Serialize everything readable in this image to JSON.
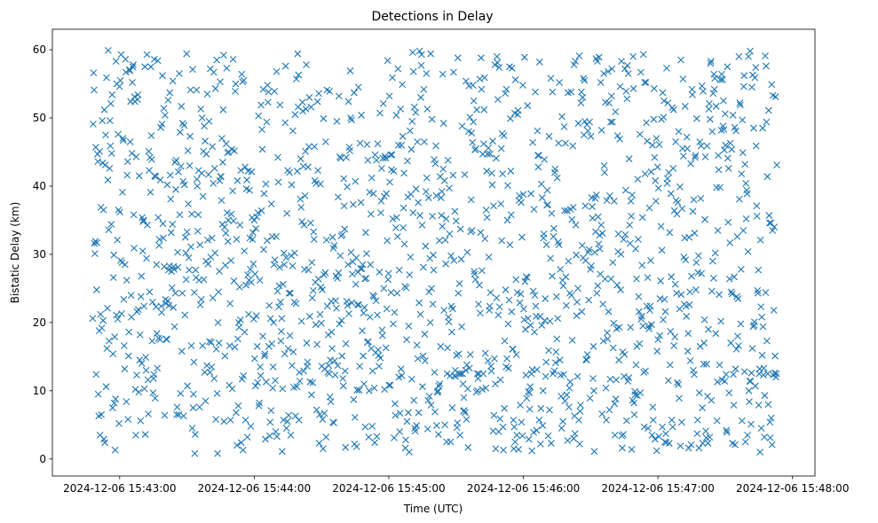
{
  "chart_data": {
    "type": "scatter",
    "title": "Detections in Delay",
    "xlabel": "Time (UTC)",
    "ylabel": "Bistatic Delay (km)",
    "marker": "x",
    "color": "#1f77b4",
    "grid": false,
    "x_start": "2024-12-06 15:42:48",
    "x_end": "2024-12-06 15:47:53",
    "xlim": [
      "2024-12-06 15:42:30",
      "2024-12-06 15:48:10"
    ],
    "ylim": [
      -2.5,
      63
    ],
    "x_ticks": [
      "2024-12-06 15:43:00",
      "2024-12-06 15:44:00",
      "2024-12-06 15:45:00",
      "2024-12-06 15:46:00",
      "2024-12-06 15:47:00",
      "2024-12-06 15:48:00"
    ],
    "y_ticks": [
      0,
      10,
      20,
      30,
      40,
      50,
      60
    ],
    "y_values": [
      20.6,
      49.1,
      56.6,
      54.1,
      31.6,
      30.1,
      31.9,
      45.7,
      12.4,
      24.8,
      31.7,
      44.7,
      43.6,
      9.5,
      6.3,
      18.8,
      45.1,
      3.5,
      21.2,
      36.9,
      6.5,
      19.2,
      49.6,
      43.4,
      20.3,
      36.5,
      2.9,
      51.2,
      2.4,
      43.1,
      47.5,
      10.6,
      55.9,
      16.2,
      22.1,
      40.9,
      59.9,
      33.6,
      17.3,
      42.6,
      49.6,
      45.9,
      52.1,
      34.4,
      44.8,
      53.4,
      7.5,
      15.4,
      26.6,
      29.9,
      8.2,
      17.9,
      1.3,
      8.8,
      58.3,
      21.1,
      55,
      32.1,
      20.5,
      47.6,
      36.5,
      5.2,
      54.6,
      36.2,
      55.5,
      29.1,
      59.3,
      21.3,
      28.8,
      39.1,
      47,
      46.7,
      23.4,
      16.6,
      13.2,
      28.5,
      58.6,
      56.7,
      8.4,
      26.2,
      41.6,
      43.6,
      5.8,
      15.1,
      18.6,
      57.1,
      56.9,
      46.5,
      52.4,
      24,
      20.8,
      44.8,
      55.2,
      57.5,
      57.8,
      35.8,
      30.9,
      53.1,
      52.4,
      10.2,
      3.5,
      44.3,
      12.3,
      21.6,
      52.7,
      53.4,
      21.9,
      9.8,
      41.5,
      14.5,
      18.2,
      5.6,
      23.8,
      26.8,
      14,
      35.4,
      30.5,
      34.8,
      35,
      22.4,
      10.3,
      57.5,
      3.6,
      14.9,
      13,
      29.4,
      59.3,
      34.3,
      11.6,
      6.6,
      45.1,
      42.3,
      24.5,
      44.2,
      39.1,
      57.5,
      47.4,
      43.9,
      17.3,
      23,
      9.7,
      11.8,
      12.4,
      58.6,
      41.5,
      8.9,
      41.4,
      22.3,
      28.5,
      18.4,
      13.3,
      58.4,
      35.4,
      17.7,
      31.3,
      32.2,
      17.5,
      40.9,
      48.6,
      22.4,
      21.5,
      49.1,
      56.2,
      34.5,
      32.4,
      51.4,
      28.2,
      6.4,
      50.4,
      23.4,
      22.8,
      17.6,
      17.5,
      40.2,
      23.2,
      52.6,
      27.7,
      22.5,
      28.3,
      53.7,
      41.6,
      38.1,
      33.2,
      27.5,
      25.1,
      34.4,
      55.4,
      22.2,
      28.2,
      27.8,
      19.4,
      43.5,
      24.3,
      39.5,
      43.8,
      6.5,
      7.6,
      30.3,
      28.1,
      42.1,
      6.5,
      56.5,
      35.8,
      47.9,
      9.6,
      42.9,
      51.7,
      15.8,
      24.3,
      49.2,
      40.7,
      6.3,
      48.9,
      40.2,
      21.1,
      32.5,
      30.2,
      26.3,
      59.4,
      33.3,
      10.7,
      45.2,
      37.4,
      29.5,
      27.7,
      43,
      47.3,
      54.1,
      31.1,
      16.6,
      35.9,
      4.5,
      57.1,
      7.5,
      9.5,
      14.2,
      24.4,
      0.8,
      3.6,
      27.7,
      26.6,
      54.1,
      41,
      40,
      33.4,
      35.8,
      42.3,
      26.2,
      7.6,
      31.4,
      22.6,
      51.3,
      23.4,
      41.9,
      50,
      16.6,
      38.5,
      45.1,
      26.3,
      48.8,
      12.7,
      46.6,
      8.5,
      29,
      44.7,
      13.7,
      53.5,
      32.1,
      28.6,
      41.7,
      49.5,
      17.2,
      12.7,
      57.2,
      29.6,
      17.1,
      13.5,
      32.4,
      45.8,
      23.6,
      40.4,
      56.7,
      11.8,
      42.6,
      30.2,
      54.3,
      5.8,
      16.1,
      58.5,
      9.6,
      0.8,
      20,
      24.5,
      17,
      27.5,
      40.8,
      55.3,
      41.4,
      41.4,
      37.9,
      47,
      34.4,
      43.5,
      51.2,
      59.2,
      5.5,
      34,
      15.1,
      28.4,
      33.1,
      46.2,
      57.3,
      36.1,
      44.9,
      31.9,
      35,
      45,
      10.8,
      16.6,
      22.8,
      5.7,
      29.1,
      35.9,
      45.4,
      10.3,
      39.3,
      58.6,
      34.9,
      26.1,
      45.2,
      16.4,
      53.9,
      55,
      6.8,
      32.2,
      2,
      40.8,
      17.6,
      7.8,
      20,
      19.3,
      25.2,
      34.3,
      20.4,
      42.3,
      2.4,
      56.4,
      11.7,
      55.3,
      1.3,
      12.2,
      55.5,
      30.5,
      18.6,
      42.8,
      5.7,
      25.5,
      39.6,
      40.9,
      3.2,
      27,
      42.2,
      21.2,
      26.2,
      39.4,
      32.4,
      27.8,
      4.8,
      25.9,
      42.1,
      35.4,
      32.2,
      33.2,
      28.6,
      20.5,
      35,
      14.7,
      27.1,
      10.7,
      33.8,
      21,
      35.5,
      16.5,
      11.2,
      36.1,
      50.3,
      7.8,
      8.2,
      26.2,
      13.5,
      12.2,
      51.9,
      36.4,
      48.3,
      45.4,
      18,
      54.2,
      30.7,
      38.9,
      15.1,
      15.4,
      2.9,
      40.3,
      11.3,
      49.4,
      32,
      54.8,
      52.3,
      53.8,
      16.5,
      22.5,
      3.4,
      5.4,
      20.6,
      7.1,
      37.4,
      16.9,
      32.6,
      10.4,
      13.5,
      20,
      28.5,
      53.9,
      29.2,
      11.5,
      4,
      32.6,
      56.8,
      3.3,
      24.6,
      44.2,
      40.6,
      22.3,
      25.4,
      28.1,
      51.9,
      23,
      17.3,
      18.7,
      20.6,
      1.1,
      10.3,
      25.6,
      5.7,
      30.2,
      28.5,
      15.4,
      49.3,
      57.6,
      29.5,
      4.5,
      36,
      5.5,
      42.3,
      16.2,
      6.4,
      24.3,
      42,
      18.1,
      24.3,
      3.5,
      29.8,
      40.2,
      13.7,
      28.3,
      48.1,
      15.7,
      10.5,
      23,
      30.2,
      50.5,
      6.3,
      22.8,
      55.7,
      10.6,
      42.2,
      59.4,
      51.6,
      56.3,
      5.7,
      12.7,
      11.4,
      38.1,
      44,
      36.9,
      20.2,
      34.8,
      52.3,
      51,
      42.9,
      12.9,
      34.3,
      27.8,
      38.6,
      45.1,
      51.3,
      57.8,
      17,
      13.6,
      14.2,
      42.8,
      27.7,
      45.8,
      53,
      20.9,
      11.3,
      34.6,
      51.6,
      9.4,
      28.8,
      23.6,
      11.2,
      24.7,
      33.3,
      32.2,
      45.8,
      40.8,
      25.9,
      19.7,
      40.4,
      7.2,
      16.8,
      52.4,
      42.3,
      26.4,
      53.6,
      2.3,
      6.5,
      21.2,
      40.3,
      25.2,
      19.9,
      13.6,
      24.8,
      5.8,
      1.5,
      49.9,
      27,
      6.7,
      13.2,
      27.3,
      46.5,
      3.2,
      32.1,
      54.1,
      22.4,
      12.7,
      18.2,
      13.7,
      12.5,
      53.9,
      9.1,
      14.5,
      8.4,
      23.1,
      18.6,
      16.2,
      32.5,
      5.4,
      30.9,
      5.3,
      31.3,
      14.4,
      12.3,
      23.2,
      26.8,
      22.1,
      49.5,
      26.5,
      13.7,
      38.4,
      27.3,
      53.2,
      19.8,
      44.3,
      29.8,
      44.1,
      32.7,
      20.3,
      15.1,
      32.9,
      11.8,
      10.7,
      41.1,
      37.1,
      33.7,
      12.9,
      1.7,
      16.9,
      44.2,
      23.1,
      39.9,
      22.5,
      28.5,
      52.4,
      21.3,
      45.7,
      45.2,
      56.9,
      50,
      30.3,
      49.7,
      22.9,
      27.1,
      28.9,
      37.3,
      8.7,
      53.7,
      2.2,
      6.1,
      40.7,
      25.6,
      29.5,
      1.8,
      10.1,
      22.6,
      27.4,
      54.5,
      22.6,
      10.1,
      13.6,
      46.3,
      27.9,
      37.6,
      50.4,
      27.9,
      18.8,
      28.5,
      15.1,
      21.4,
      11,
      22.2,
      26.4,
      4.7,
      33.2,
      26.5,
      30.1,
      46.1,
      17.1,
      43.8,
      17.2,
      3.2,
      10,
      39.1,
      20.8,
      28.5,
      35.9,
      16.2,
      41.2,
      4.8,
      12.9,
      24,
      38.9,
      23.8,
      10.4,
      2.4,
      44.6,
      15.6,
      23.2,
      43.8,
      3.3,
      21.1,
      46.2,
      16,
      15.2,
      13.6,
      27.4,
      50.7,
      14.8,
      36.1,
      37.8,
      42.6,
      18.9,
      18.1,
      44.1,
      52.1,
      25,
      38.5,
      10.2,
      44.4,
      44.1,
      16.3,
      38.9,
      22,
      32,
      58.4,
      26.3,
      27.2,
      10.8,
      53.2,
      40.6,
      10.8,
      44.6,
      24.4,
      42.4,
      44.6,
      55.9,
      35.2,
      19.8,
      42.2,
      3.1,
      21.5,
      8.1,
      6.4,
      33.9,
      50.4,
      35.4,
      24.3,
      32.6,
      57.2,
      46,
      12,
      27.7,
      4,
      6.7,
      51.3,
      13.2,
      46,
      12.2,
      54.9,
      47.3,
      33.9,
      36.8,
      41.9,
      31.5,
      25.3,
      1.6,
      2.8,
      25.1,
      17.5,
      5.5,
      43.7,
      38.4,
      6.8,
      19.5,
      1,
      27,
      48.1,
      29.6,
      38.8,
      45.4,
      11.7,
      49.5,
      59.6,
      36.1,
      56.8,
      8.6,
      51.6,
      4.5,
      4.1,
      50.8,
      39.6,
      4.9,
      16.7,
      46.5,
      14.7,
      37.6,
      6.8,
      22.9,
      59.8,
      35.7,
      21.2,
      53,
      57.7,
      59.3,
      34.3,
      10.6,
      15.1,
      28.1,
      54.2,
      46.5,
      18.3,
      14.4,
      31.2,
      39.2,
      56.5,
      41.2,
      51.3,
      4.4,
      8.6,
      38.3,
      24.5,
      9.2,
      29.4,
      20,
      59.4,
      7.9,
      25,
      49.8,
      35.6,
      22.7,
      29.9,
      27.7,
      43.9,
      12.7,
      6.9,
      43.3,
      45.9,
      38.6,
      4.9,
      9.8,
      9.8,
      10,
      3.6,
      10.7,
      32,
      11,
      41.4,
      16.5,
      38.3,
      35.7,
      39.2,
      34.1,
      56.4,
      42.5,
      49.2,
      21.8,
      40.8,
      5,
      32.1,
      28.6,
      35.2,
      2.5,
      12.5,
      16.3,
      43.8,
      20.8,
      20.1,
      39.7,
      33,
      12.2,
      2.5,
      29.8,
      22.4,
      18.6,
      7.5,
      22,
      41.6,
      56.7,
      29.1,
      12.2,
      36.3,
      13,
      12.1,
      34.9,
      15.2,
      4.6,
      5.3,
      58.8,
      24.3,
      15.4,
      12.5,
      25.7,
      3.5,
      33.7,
      12.5,
      29.3,
      19.4,
      48.8,
      12.5,
      11,
      7,
      9,
      7.1,
      41.7,
      6.8,
      13,
      55.4,
      5.8,
      13.8,
      30.3,
      10.3,
      1.7,
      48,
      54.7,
      13.3,
      50.1,
      15.3,
      33.3,
      38,
      47.8,
      33.5,
      46.4,
      54.8,
      49.4,
      52.5,
      27.5,
      27.1,
      45.3,
      26.3,
      45.5,
      9.8,
      51.2,
      12.5,
      10,
      11.8,
      22.7,
      12.5,
      25.5,
      55.7,
      21.4,
      33.2,
      58.8,
      54.2,
      27.6,
      10.2,
      44.7,
      12.5,
      46.2,
      51.2,
      55.9,
      32.3,
      15.5,
      10.4,
      36.5,
      42.2,
      35.4,
      44.7,
      14.4,
      45.6,
      29.6,
      21.8,
      22.4,
      44.7,
      24.4,
      13.6,
      12.9,
      41.9,
      40.2,
      46.6,
      4.1,
      37.1,
      6.4,
      14.7,
      57.8,
      11,
      1.5,
      44.1,
      23.6,
      59,
      58.1,
      52.7,
      21.1,
      4,
      57.4,
      22.3,
      5.9,
      11.6,
      37.4,
      45.5,
      32,
      47.7,
      41.8,
      4.7,
      1.3,
      47.4,
      7.4,
      17.3,
      53.6,
      24.8,
      13.5,
      54.2,
      14.7,
      35,
      40.1,
      19.8,
      13.3,
      23.3,
      57.5,
      31.4,
      49.9,
      42.2,
      35.8,
      21.6,
      57.3,
      16.1,
      16.1,
      5.7,
      1.5,
      4.7,
      50.7,
      2.5,
      55.6,
      26.3,
      15.3,
      3.5,
      24.4,
      50.5,
      51.1,
      1.4,
      37.9,
      38.6,
      22.9,
      7.9,
      24.2,
      37.6,
      5.4,
      32.5,
      3.4,
      54.8,
      38.8,
      22,
      20.4,
      58.9,
      26,
      19,
      12.3,
      26.7,
      8.9,
      26.6,
      51.8,
      20.6,
      9.9,
      2.9,
      9.7,
      7.3,
      10.6,
      19.6,
      38.9,
      12.5,
      1.2,
      13.1,
      46.4,
      24.6,
      3.9,
      36.6,
      18.6,
      24,
      53.8,
      22.4,
      20.9,
      4.2,
      13.1,
      48.1,
      44.5,
      42.8,
      44.5,
      5.7,
      58.2,
      20.9,
      2.2,
      7.4,
      40.3,
      19.6,
      38.3,
      4.9,
      10,
      32.4,
      33,
      43.9,
      20.3,
      23.5,
      12.1,
      14.2,
      31.4,
      37.2,
      39.4,
      37.3,
      3.4,
      15.9,
      47.3,
      7.2,
      20.2,
      29.4,
      55.8,
      2.3,
      36,
      26.8,
      53.8,
      12.5,
      32.6,
      33.8,
      12.9,
      42,
      42.5,
      14.1,
      15.7,
      23.8,
      17.6,
      41.2,
      20.6,
      31.8,
      46.3,
      31.4,
      55.2,
      14.5,
      27.8,
      12.3,
      9.2,
      4.5,
      50.2,
      26.2,
      5.5,
      25.4,
      12.4,
      48.7,
      36.4,
      8.5,
      46.3,
      26.7,
      22.5,
      9.4,
      36.4,
      2.7,
      53.7,
      29,
      7.6,
      10.4,
      24.3,
      11.3,
      36.6,
      53.8,
      24,
      35.1,
      17.4,
      45.9,
      36.9,
      3,
      57.8,
      6.3,
      3.7,
      58.3,
      34.3,
      29.9,
      21,
      23,
      12.1,
      25,
      49.2,
      5.7,
      59.1,
      2.2,
      7,
      7.9,
      52.2,
      53.8,
      21.6,
      31.3,
      53,
      29.5,
      55.8,
      47.5,
      55.5,
      49.5,
      37.1,
      29.1,
      14.6,
      14.5,
      49,
      15.3,
      48.1,
      30.3,
      23.3,
      30.7,
      49.4,
      8.9,
      27.8,
      47.3,
      28.3,
      38.3,
      37,
      35.3,
      11.8,
      16.5,
      10,
      1.1,
      30.3,
      38.2,
      33.3,
      58.7,
      38.7,
      24.3,
      58.3,
      25.4,
      35.5,
      31.5,
      58.9,
      32.8,
      30.8,
      27.1,
      55.2,
      34.3,
      48.2,
      6.6,
      33.1,
      22.7,
      17.3,
      56.5,
      43,
      42,
      26.4,
      52.3,
      10.4,
      5.7,
      37.9,
      18.5,
      17.6,
      56.8,
      21.6,
      52.2,
      7.2,
      38.6,
      11.7,
      49.4,
      26.4,
      53.2,
      57.2,
      49.4,
      28.8,
      16.3,
      19.9,
      37.8,
      8.1,
      3.5,
      50.9,
      8.8,
      11.6,
      19.1,
      25.5,
      47.4,
      30.4,
      33,
      14.5,
      19.3,
      46.9,
      54.6,
      24.8,
      30,
      58.3,
      3.4,
      1.6,
      15.7,
      3.6,
      32.2,
      12.1,
      15.3,
      57.2,
      32.9,
      39.4,
      53.9,
      5.6,
      52.8,
      57.7,
      11.4,
      56.5,
      11.9,
      44,
      34.3,
      31.6,
      19.3,
      37.8,
      35.6,
      1.4,
      38.7,
      8.6,
      59,
      54.3,
      8.2,
      6.5,
      9.9,
      9.4,
      30.8,
      13.8,
      26.4,
      16.5,
      9.3,
      41,
      32.2,
      23.8,
      21.6,
      16.9,
      47.6,
      9.7,
      56.7,
      20.5,
      20.9,
      28.4,
      35.4,
      19.5,
      59.3,
      12.7,
      4.7,
      55.2,
      41.8,
      12.9,
      55.2,
      49.3,
      22.4,
      46.6,
      26.6,
      4.5,
      19.5,
      19.1,
      36.8,
      21.8,
      22.4,
      29.1,
      42.1,
      19.7,
      3.5,
      46,
      7.6,
      5.7,
      49.8,
      54.3,
      44.2,
      2.9,
      40.8,
      37.8,
      47,
      1.2,
      15.8,
      42.8,
      17.5,
      39.7,
      3.3,
      46.1,
      18.1,
      23.5,
      26.1,
      34.1,
      49.8,
      30.6,
      4.7,
      53.7,
      20.4,
      50.1,
      52.5,
      23.4,
      2.5,
      21.6,
      3.7,
      2.4,
      57.3,
      40.4,
      41.1,
      52.2,
      11.5,
      42,
      2.3,
      33.2,
      13.8,
      18.7,
      38.9,
      26.7,
      5.7,
      51.5,
      4.7,
      42.6,
      51.2,
      16.6,
      36.4,
      17.9,
      25.6,
      46.5,
      37.9,
      24.3,
      35.9,
      11.2,
      37.6,
      10.9,
      48,
      8.9,
      22,
      39.9,
      1.9,
      58.5,
      24.1,
      5.4,
      36.7,
      45.5,
      55.7,
      44.4,
      29.6,
      22.7,
      32.4,
      51.7,
      29.2,
      22.4,
      20.9,
      47.2,
      45.5,
      15.8,
      18.4,
      1.6,
      32.5,
      22.6,
      24.5,
      14.4,
      43.3,
      2.1,
      26.8,
      54.2,
      53.4,
      36.3,
      13,
      38,
      12.4,
      33.1,
      44.2,
      44.5,
      24.8,
      28.8,
      49.9,
      3.7,
      5.7,
      27.3,
      29.8,
      1.6,
      9.7,
      46.5,
      16.5,
      38.2,
      45.9,
      27.2,
      54.7,
      7.5,
      2.3,
      53.9,
      13.9,
      17,
      20.4,
      35.1,
      44.3,
      4.1,
      3.1,
      13.9,
      45.9,
      9.2,
      2.3,
      19,
      51.3,
      52.1,
      3.2,
      49.8,
      58,
      58.3,
      8.6,
      24.6,
      48,
      29,
      53.6,
      26.5,
      56.4,
      54.2,
      55.8,
      30.2,
      18.4,
      51.7,
      39.8,
      5.6,
      11.3,
      33.5,
      44.5,
      42.4,
      24.1,
      13.8,
      39.8,
      55.6,
      20.2,
      48.2,
      56.4,
      11.6,
      55.6,
      48.8,
      52.5,
      48.3,
      45.3,
      11.4,
      50.6,
      46,
      12.4,
      4.2,
      3.9,
      57.5,
      44.1,
      34.7,
      42.6,
      9.7,
      26.4,
      31.7,
      46.3,
      17,
      24.5,
      45.4,
      24.2,
      2.3,
      50.4,
      12.4,
      7.9,
      26.7,
      48.6,
      2.1,
      13.2,
      48.1,
      16.1,
      23.8,
      32.6,
      18,
      23.5,
      16.6,
      59,
      38.1,
      52.2,
      51.9,
      19.8,
      27.8,
      41.8,
      5.6,
      49.7,
      44.9,
      33.5,
      54.6,
      56.2,
      12.8,
      43.2,
      2.5,
      40.4,
      35.2,
      39.4,
      38.9,
      3.5,
      30.4,
      59,
      10,
      8.4,
      11.4,
      59.8,
      11.4,
      5.1,
      12.6,
      54.5,
      16.2,
      56.3,
      19.4,
      48.5,
      19.6,
      20.1,
      55.9,
      10.7,
      57.4,
      45.9,
      37.1,
      35.6,
      24.7,
      24.3,
      27.7,
      7.9,
      12.5,
      13.2,
      1,
      32.1,
      22.3,
      4.5,
      20.8,
      15.2,
      48.5,
      19.4,
      12.3,
      13.3,
      3.2,
      9.3,
      59.1,
      24.4,
      57.6,
      49.4,
      17.3,
      41.4,
      12.5,
      8,
      51.1,
      35.7,
      34.6,
      5.4,
      3.1,
      34.6,
      6,
      54.9,
      2.1,
      33.5,
      53.3,
      12.3,
      21.8,
      34,
      12.6,
      15.1,
      53.1,
      12,
      12.5,
      43.1
    ]
  }
}
